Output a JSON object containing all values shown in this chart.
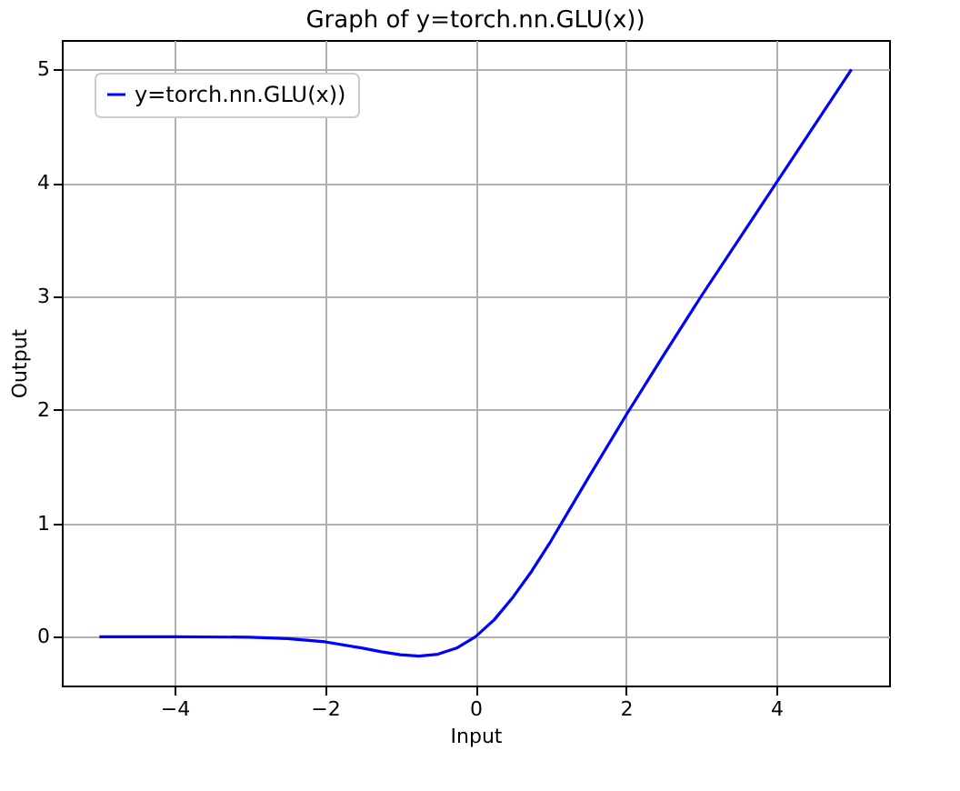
{
  "chart_data": {
    "type": "line",
    "title": "Graph of y=torch.nn.GLU(x))",
    "xlabel": "Input",
    "ylabel": "Output",
    "x": [
      -5,
      -4,
      -3,
      -2.5,
      -2,
      -1.5,
      -1.25,
      -1,
      -0.75,
      -0.5,
      -0.25,
      0,
      0.25,
      0.5,
      0.75,
      1,
      1.5,
      2,
      2.5,
      3,
      4,
      5
    ],
    "series": [
      {
        "name": "y=torch.nn.GLU(x))",
        "color": "#0000ff",
        "values": [
          0,
          0,
          -0.004,
          -0.016,
          -0.045,
          -0.1,
          -0.132,
          -0.159,
          -0.17,
          -0.154,
          -0.1,
          0,
          0.15,
          0.35,
          0.58,
          0.84,
          1.4,
          1.95,
          2.48,
          3.0,
          4.0,
          5.0
        ]
      }
    ],
    "xlim": [
      -5.5,
      5.5
    ],
    "xticks": [
      -4,
      -2,
      0,
      2,
      4
    ],
    "ylim": [
      -0.43,
      5.26
    ],
    "yticks": [
      0,
      1,
      2,
      3,
      4,
      5
    ],
    "grid": true,
    "legend": "top left",
    "line_style": "solid",
    "marker": "none"
  }
}
